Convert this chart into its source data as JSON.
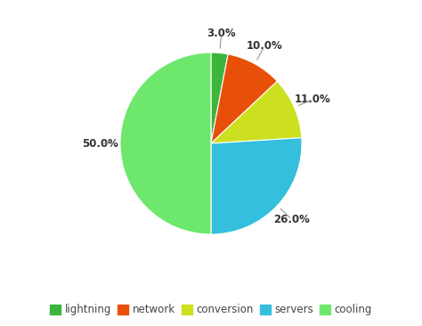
{
  "labels": [
    "lightning",
    "network",
    "conversion",
    "servers",
    "cooling"
  ],
  "values": [
    3.0,
    10.0,
    11.0,
    26.0,
    50.0
  ],
  "colors": [
    "#3db53d",
    "#e8500a",
    "#cce020",
    "#33bfdd",
    "#6de86d"
  ],
  "legend_colors": [
    "#3db53d",
    "#e8500a",
    "#cce020",
    "#33bfdd",
    "#6de86d"
  ],
  "background_color": "#ffffff",
  "startangle": 90,
  "pct_distance": 1.22
}
